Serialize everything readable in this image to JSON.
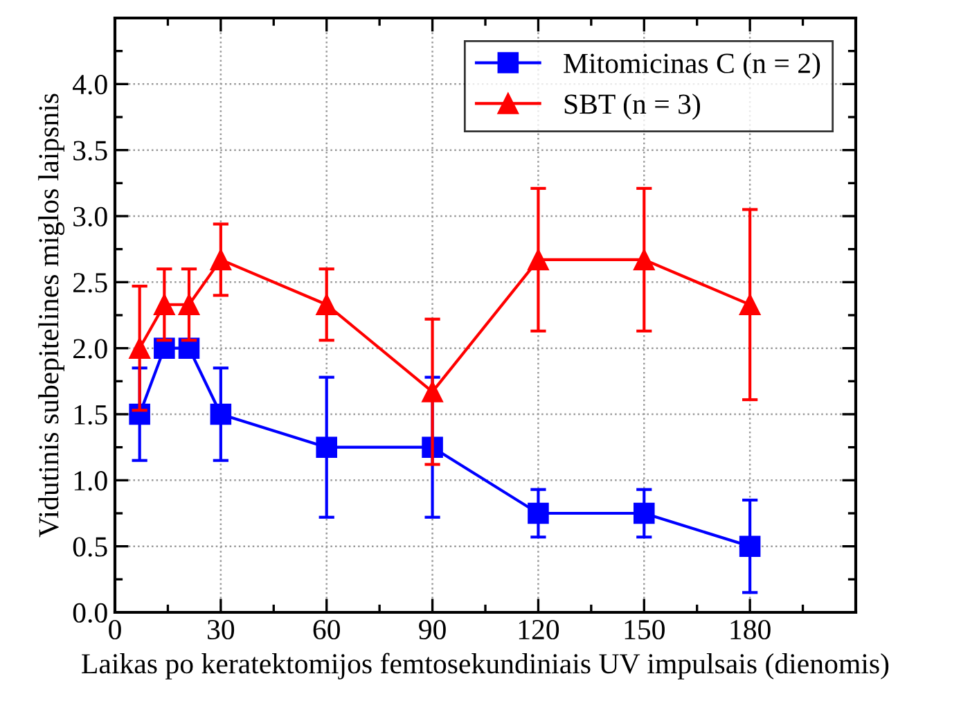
{
  "chart_data": {
    "type": "line",
    "xlabel": "Laikas po keratektomijos femtosekundiniais UV impulsais (dienomis)",
    "ylabel": "Vidutinis subepitelines miglos laipsnis",
    "x": [
      7,
      14,
      21,
      30,
      60,
      90,
      120,
      150,
      180
    ],
    "series": [
      {
        "name": "Mitomicinas C (n = 2)",
        "color": "#0000ff",
        "marker": "square",
        "values": [
          1.5,
          2.0,
          2.0,
          1.5,
          1.25,
          1.25,
          0.75,
          0.75,
          0.5
        ],
        "errors": [
          0.35,
          null,
          null,
          0.35,
          0.53,
          0.53,
          0.18,
          0.18,
          0.35
        ]
      },
      {
        "name": "SBT (n = 3)",
        "color": "#ff0000",
        "marker": "triangle",
        "values": [
          2.0,
          2.33,
          2.33,
          2.67,
          2.33,
          1.67,
          2.67,
          2.67,
          2.33
        ],
        "errors": [
          0.47,
          0.27,
          0.27,
          0.27,
          0.27,
          0.55,
          0.54,
          0.54,
          0.72
        ]
      }
    ],
    "xlim": [
      0,
      210
    ],
    "xticks": [
      0,
      30,
      60,
      90,
      120,
      150,
      180
    ],
    "ylim": [
      0,
      4.5
    ],
    "yticks": [
      {
        "value": 0,
        "label": "0.0"
      },
      0.5,
      {
        "value": 1,
        "label": "1.0"
      },
      1.5,
      {
        "value": 2,
        "label": "2.0"
      },
      2.5,
      {
        "value": 3,
        "label": "3.0"
      },
      3.5,
      {
        "value": 4,
        "label": "4.0"
      }
    ],
    "grid": true,
    "legend": "top right",
    "line_style": "solid"
  }
}
